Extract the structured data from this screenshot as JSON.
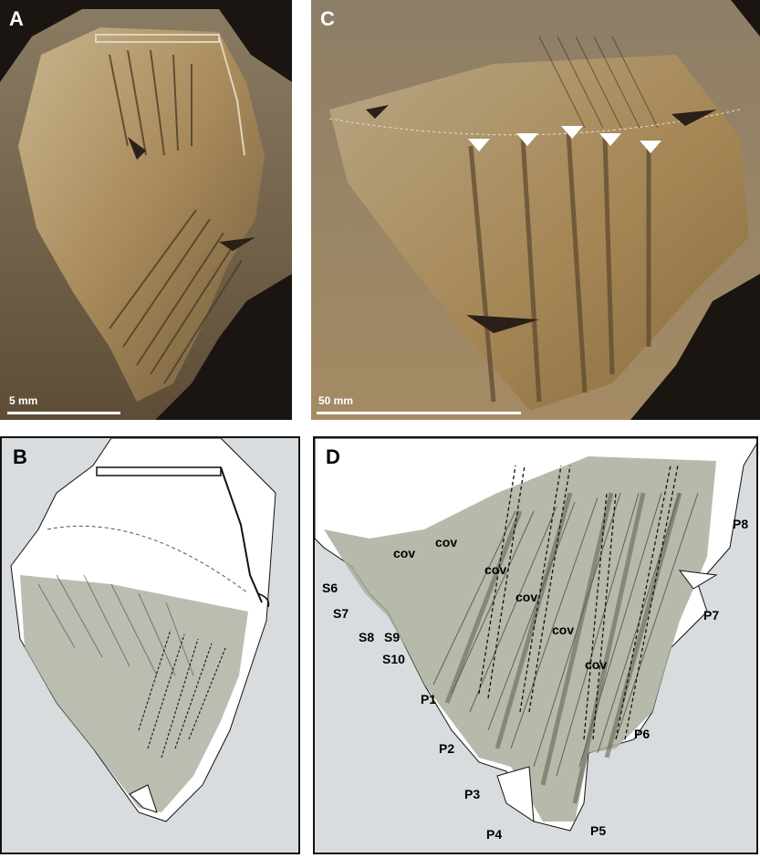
{
  "panels": {
    "a": {
      "letter": "A",
      "scale_label": "5 mm"
    },
    "b": {
      "letter": "B"
    },
    "c": {
      "letter": "C",
      "scale_label": "50 mm"
    },
    "d": {
      "letter": "D",
      "labels": {
        "cov1": "cov",
        "cov2": "cov",
        "cov3": "cov",
        "cov4": "cov",
        "cov5": "cov",
        "cov6": "cov",
        "s6": "S6",
        "s7": "S7",
        "s8": "S8",
        "s9": "S9",
        "s10": "S10",
        "p1": "P1",
        "p2": "P2",
        "p3": "P3",
        "p4": "P4",
        "p5": "P5",
        "p6": "P6",
        "p7": "P7",
        "p8": "P8"
      }
    }
  },
  "colors": {
    "photo_background": "#1a1511",
    "fossil_tan": "#b39464",
    "fossil_dark": "#6e5a3c",
    "drawing_background": "#d9dcdf",
    "feather_white": "#ffffff",
    "feather_gray": "#a9ae9c",
    "outline": "#111111"
  }
}
